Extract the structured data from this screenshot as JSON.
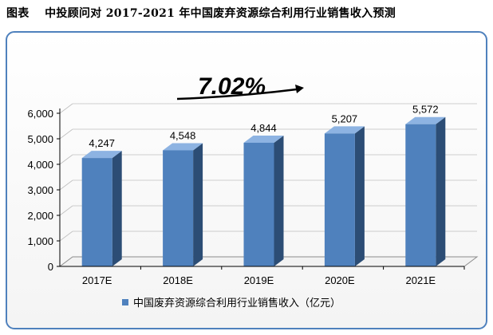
{
  "figure_title": "图表　 中投顾问对 2017-2021 年中国废弃资源综合利用行业销售收入预测",
  "growth_label": "7.02%",
  "colors": {
    "bar_front": "#4f81bd",
    "bar_side": "#2c4d75",
    "bar_top": "#8db3e2",
    "panel_border": "#4f81bd",
    "floor": "#f2f2f2",
    "grid": "#bfbfbf"
  },
  "chart_data": {
    "type": "bar",
    "title": "",
    "xlabel": "",
    "ylabel": "",
    "categories": [
      "2017E",
      "2018E",
      "2019E",
      "2020E",
      "2021E"
    ],
    "series": [
      {
        "name": "中国废弃资源综合利用行业销售收入（亿元）",
        "values": [
          4247,
          4548,
          4844,
          5207,
          5572
        ]
      }
    ],
    "data_labels": [
      "4,247",
      "4,548",
      "4,844",
      "5,207",
      "5,572"
    ],
    "yticks": [
      "0",
      "1,000",
      "2,000",
      "3,000",
      "4,000",
      "5,000",
      "6,000"
    ],
    "ylim": [
      0,
      6000
    ],
    "grid": true,
    "legend_position": "bottom",
    "annotation": "7.02%"
  }
}
